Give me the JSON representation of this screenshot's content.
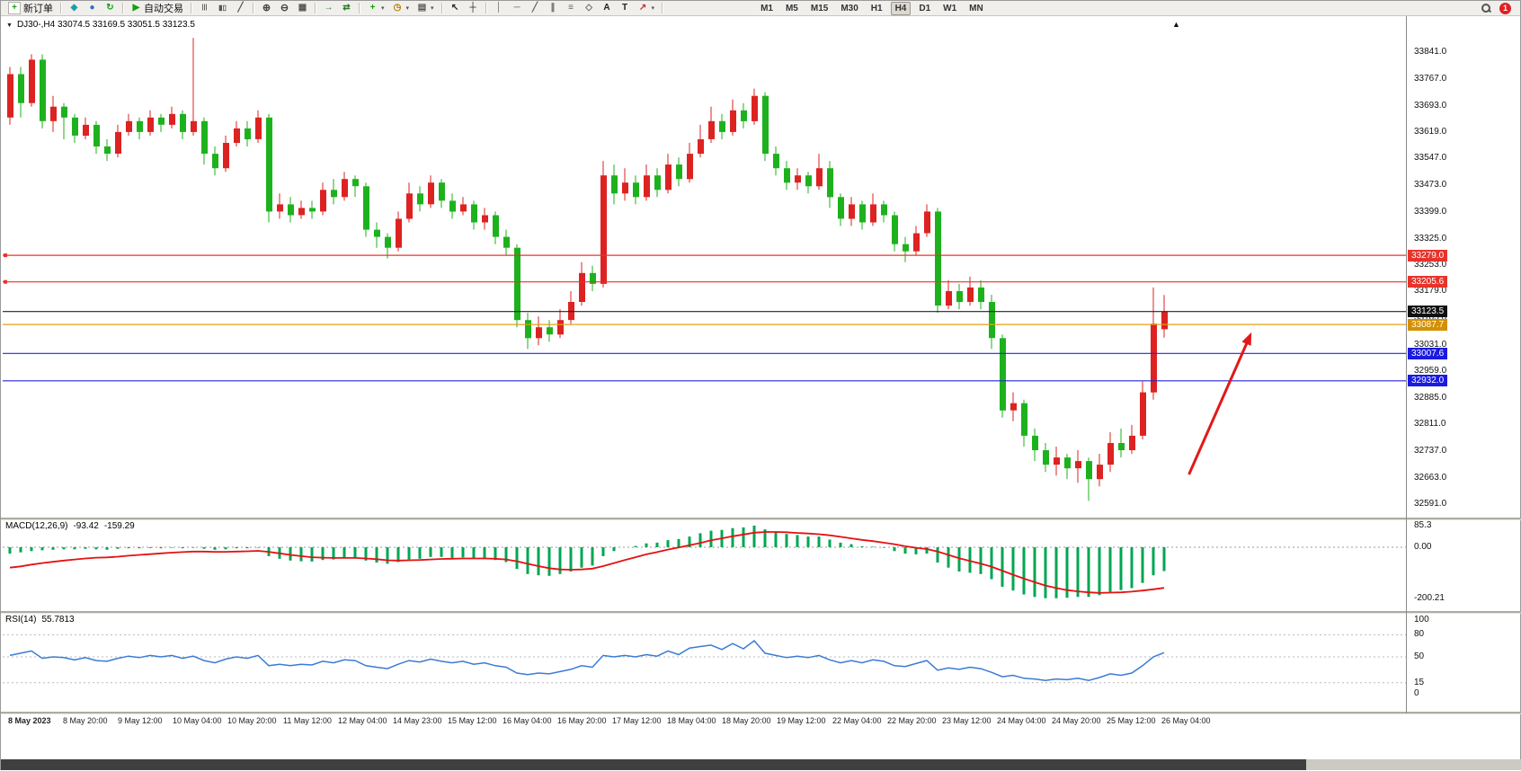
{
  "toolbar": {
    "buttons": [
      {
        "name": "new-order-button",
        "icon": "candle-plus-icon",
        "label": "新订单"
      },
      {
        "sep": true
      },
      {
        "name": "charts-button",
        "icon": "compass-icon"
      },
      {
        "name": "profile-button",
        "icon": "person-icon"
      },
      {
        "name": "refresh-button",
        "icon": "refresh-icon"
      },
      {
        "sep": true
      },
      {
        "name": "autotrading-button",
        "icon": "play-icon",
        "label": "自动交易"
      },
      {
        "sep": true
      },
      {
        "name": "bar-chart-button",
        "icon": "bars-icon"
      },
      {
        "name": "candlestick-chart-button",
        "icon": "candles-icon"
      },
      {
        "name": "line-chart-button",
        "icon": "linechart-icon"
      },
      {
        "sep": true
      },
      {
        "name": "zoom-in-button",
        "icon": "zoom-in-icon"
      },
      {
        "name": "zoom-out-button",
        "icon": "zoom-out-icon"
      },
      {
        "name": "tile-windows-button",
        "icon": "tile-icon"
      },
      {
        "sep": true
      },
      {
        "name": "auto-scroll-button",
        "icon": "auto-scroll-icon"
      },
      {
        "name": "chart-shift-button",
        "icon": "chart-shift-icon"
      },
      {
        "sep": true
      },
      {
        "name": "indicators-button",
        "icon": "indicator-plus-icon",
        "dropdown": true
      },
      {
        "name": "periods-button",
        "icon": "clock-icon",
        "dropdown": true
      },
      {
        "name": "templates-button",
        "icon": "template-icon",
        "dropdown": true
      },
      {
        "sep": true
      },
      {
        "name": "cursor-button",
        "icon": "cursor-icon"
      },
      {
        "name": "crosshair-button",
        "icon": "crosshair-icon"
      },
      {
        "sep": true
      },
      {
        "name": "vertical-line-button",
        "icon": "vline-icon"
      },
      {
        "name": "horizontal-line-button",
        "icon": "hline-icon"
      },
      {
        "name": "trendline-button",
        "icon": "trendline-icon"
      },
      {
        "name": "channel-button",
        "icon": "channel-icon"
      },
      {
        "name": "fibonacci-button",
        "icon": "fibo-icon"
      },
      {
        "name": "shapes-button",
        "icon": "shapes-icon"
      },
      {
        "name": "text-button",
        "icon": "text-a-icon"
      },
      {
        "name": "text-label-button",
        "icon": "text-t-icon"
      },
      {
        "name": "arrows-button",
        "icon": "arrow-icon",
        "dropdown": true
      },
      {
        "sep": true
      }
    ],
    "timeframes": [
      "M1",
      "M5",
      "M15",
      "M30",
      "H1",
      "H4",
      "D1",
      "W1",
      "MN"
    ],
    "active_timeframe": "H4",
    "notification_count": "1"
  },
  "title": {
    "symbol_ohlc": "DJ30-,H4  33074.5 33169.5 33051.5 33123.5"
  },
  "price_axis": [
    33841.0,
    33767.0,
    33693.0,
    33619.0,
    33547.0,
    33473.0,
    33399.0,
    33325.0,
    33253.0,
    33179.0,
    33105.0,
    33031.0,
    32959.0,
    32885.0,
    32811.0,
    32737.0,
    32663.0,
    32591.0
  ],
  "time_axis": [
    "8 May 2023",
    "8 May 20:00",
    "9 May 12:00",
    "10 May 04:00",
    "10 May 20:00",
    "11 May 12:00",
    "12 May 04:00",
    "14 May 23:00",
    "15 May 12:00",
    "16 May 04:00",
    "16 May 20:00",
    "17 May 12:00",
    "18 May 04:00",
    "18 May 20:00",
    "19 May 12:00",
    "22 May 04:00",
    "22 May 20:00",
    "23 May 12:00",
    "24 May 04:00",
    "24 May 20:00",
    "25 May 12:00",
    "26 May 04:00"
  ],
  "chart_data": {
    "type": "candlestick",
    "symbol": "DJ30-",
    "timeframe": "H4",
    "last_bar": {
      "open": 33074.5,
      "high": 33169.5,
      "low": 33051.5,
      "close": 33123.5
    },
    "ylim": [
      32554,
      33900
    ],
    "colors": {
      "bull": "#dd2222",
      "bear": "#1db21d",
      "macd_hist": "#00a651",
      "macd_signal": "#e31212",
      "rsi_line": "#3b7bd4",
      "arrow": "#e31818"
    },
    "candles": [
      [
        33660,
        33800,
        33640,
        33780
      ],
      [
        33780,
        33800,
        33660,
        33700
      ],
      [
        33700,
        33835,
        33690,
        33820
      ],
      [
        33820,
        33835,
        33630,
        33650
      ],
      [
        33650,
        33720,
        33620,
        33690
      ],
      [
        33690,
        33700,
        33600,
        33660
      ],
      [
        33660,
        33670,
        33590,
        33610
      ],
      [
        33610,
        33660,
        33600,
        33640
      ],
      [
        33640,
        33650,
        33560,
        33580
      ],
      [
        33580,
        33600,
        33540,
        33560
      ],
      [
        33560,
        33640,
        33550,
        33620
      ],
      [
        33620,
        33670,
        33610,
        33650
      ],
      [
        33650,
        33660,
        33600,
        33620
      ],
      [
        33620,
        33680,
        33610,
        33660
      ],
      [
        33660,
        33670,
        33620,
        33640
      ],
      [
        33640,
        33690,
        33630,
        33670
      ],
      [
        33670,
        33680,
        33600,
        33620
      ],
      [
        33620,
        33880,
        33610,
        33650
      ],
      [
        33650,
        33660,
        33530,
        33560
      ],
      [
        33560,
        33580,
        33500,
        33520
      ],
      [
        33520,
        33610,
        33510,
        33590
      ],
      [
        33590,
        33650,
        33580,
        33630
      ],
      [
        33630,
        33650,
        33580,
        33600
      ],
      [
        33600,
        33680,
        33590,
        33660
      ],
      [
        33660,
        33670,
        33370,
        33400
      ],
      [
        33400,
        33450,
        33380,
        33420
      ],
      [
        33420,
        33440,
        33370,
        33390
      ],
      [
        33390,
        33430,
        33380,
        33410
      ],
      [
        33410,
        33430,
        33380,
        33400
      ],
      [
        33400,
        33480,
        33390,
        33460
      ],
      [
        33460,
        33490,
        33420,
        33440
      ],
      [
        33440,
        33510,
        33430,
        33490
      ],
      [
        33490,
        33500,
        33440,
        33470
      ],
      [
        33470,
        33480,
        33330,
        33350
      ],
      [
        33350,
        33370,
        33300,
        33330
      ],
      [
        33330,
        33340,
        33270,
        33300
      ],
      [
        33300,
        33400,
        33290,
        33380
      ],
      [
        33380,
        33480,
        33370,
        33450
      ],
      [
        33450,
        33470,
        33400,
        33420
      ],
      [
        33420,
        33500,
        33410,
        33480
      ],
      [
        33480,
        33490,
        33410,
        33430
      ],
      [
        33430,
        33450,
        33380,
        33400
      ],
      [
        33400,
        33440,
        33390,
        33420
      ],
      [
        33420,
        33430,
        33350,
        33370
      ],
      [
        33370,
        33410,
        33350,
        33390
      ],
      [
        33390,
        33400,
        33310,
        33330
      ],
      [
        33330,
        33350,
        33280,
        33300
      ],
      [
        33300,
        33310,
        33080,
        33100
      ],
      [
        33100,
        33120,
        33020,
        33050
      ],
      [
        33050,
        33110,
        33030,
        33080
      ],
      [
        33080,
        33100,
        33040,
        33060
      ],
      [
        33060,
        33130,
        33050,
        33100
      ],
      [
        33100,
        33180,
        33090,
        33150
      ],
      [
        33150,
        33260,
        33140,
        33230
      ],
      [
        33230,
        33250,
        33180,
        33200
      ],
      [
        33200,
        33540,
        33190,
        33500
      ],
      [
        33500,
        33530,
        33420,
        33450
      ],
      [
        33450,
        33520,
        33430,
        33480
      ],
      [
        33480,
        33500,
        33420,
        33440
      ],
      [
        33440,
        33530,
        33430,
        33500
      ],
      [
        33500,
        33520,
        33440,
        33460
      ],
      [
        33460,
        33560,
        33450,
        33530
      ],
      [
        33530,
        33550,
        33470,
        33490
      ],
      [
        33490,
        33590,
        33480,
        33560
      ],
      [
        33560,
        33640,
        33550,
        33600
      ],
      [
        33600,
        33690,
        33590,
        33650
      ],
      [
        33650,
        33670,
        33600,
        33620
      ],
      [
        33620,
        33710,
        33610,
        33680
      ],
      [
        33680,
        33700,
        33630,
        33650
      ],
      [
        33650,
        33740,
        33640,
        33720
      ],
      [
        33720,
        33730,
        33540,
        33560
      ],
      [
        33560,
        33580,
        33500,
        33520
      ],
      [
        33520,
        33540,
        33460,
        33480
      ],
      [
        33480,
        33520,
        33460,
        33500
      ],
      [
        33500,
        33510,
        33450,
        33470
      ],
      [
        33470,
        33560,
        33460,
        33520
      ],
      [
        33520,
        33540,
        33410,
        33440
      ],
      [
        33440,
        33450,
        33360,
        33380
      ],
      [
        33380,
        33440,
        33360,
        33420
      ],
      [
        33420,
        33430,
        33350,
        33370
      ],
      [
        33370,
        33450,
        33360,
        33420
      ],
      [
        33420,
        33430,
        33370,
        33390
      ],
      [
        33390,
        33400,
        33290,
        33310
      ],
      [
        33310,
        33330,
        33260,
        33290
      ],
      [
        33290,
        33360,
        33280,
        33340
      ],
      [
        33340,
        33420,
        33330,
        33400
      ],
      [
        33400,
        33410,
        33120,
        33140
      ],
      [
        33140,
        33210,
        33130,
        33180
      ],
      [
        33180,
        33200,
        33130,
        33150
      ],
      [
        33150,
        33220,
        33140,
        33190
      ],
      [
        33190,
        33210,
        33130,
        33150
      ],
      [
        33150,
        33170,
        33020,
        33050
      ],
      [
        33050,
        33060,
        32830,
        32850
      ],
      [
        32850,
        32900,
        32820,
        32870
      ],
      [
        32870,
        32880,
        32750,
        32780
      ],
      [
        32780,
        32800,
        32710,
        32740
      ],
      [
        32740,
        32760,
        32680,
        32700
      ],
      [
        32700,
        32750,
        32670,
        32720
      ],
      [
        32720,
        32730,
        32660,
        32690
      ],
      [
        32690,
        32740,
        32650,
        32710
      ],
      [
        32710,
        32720,
        32600,
        32660
      ],
      [
        32660,
        32730,
        32640,
        32700
      ],
      [
        32700,
        32790,
        32680,
        32760
      ],
      [
        32760,
        32800,
        32720,
        32740
      ],
      [
        32740,
        32810,
        32730,
        32780
      ],
      [
        32780,
        32930,
        32770,
        32900
      ],
      [
        32900,
        33190,
        32880,
        33090
      ],
      [
        33074.5,
        33169.5,
        33051.5,
        33123.5
      ]
    ],
    "levels": [
      {
        "price": 33279.0,
        "label": "33279.0",
        "color": "#e8332a",
        "tag_bg": "#e8332a"
      },
      {
        "price": 33205.6,
        "label": "33205.6",
        "color": "#e8332a",
        "tag_bg": "#e8332a"
      },
      {
        "price": 33123.5,
        "label": "33123.5",
        "color": "#222222",
        "tag_bg": "#111111"
      },
      {
        "price": 33087.7,
        "label": "33087.7",
        "color": "#e0a010",
        "tag_bg": "#d49000"
      },
      {
        "price": 33007.6,
        "label": "33007.6",
        "color": "#2426d8",
        "tag_bg": "#1a1ae0"
      },
      {
        "price": 32932.0,
        "label": "32932.0",
        "color": "#2426d8",
        "tag_bg": "#1a1ae0"
      }
    ],
    "annotation_arrow": {
      "from_index": 109.3,
      "from_price": 32673,
      "to_index": 115.1,
      "to_price": 33066
    },
    "macd": {
      "label": "MACD(12,26,9)",
      "main_value": "-93.42",
      "signal_value": "-159.29",
      "axis": [
        {
          "v": 85.3,
          "label": "85.3"
        },
        {
          "v": 0,
          "label": "0.00"
        },
        {
          "v": -200.21,
          "label": "-200.21"
        }
      ],
      "ylim": [
        -230,
        110
      ],
      "histogram": [
        -25,
        -20,
        -15,
        -12,
        -10,
        -8,
        -8,
        -6,
        -8,
        -10,
        -6,
        -4,
        -4,
        -3,
        -4,
        -2,
        -4,
        -2,
        -6,
        -10,
        -8,
        -4,
        -4,
        -2,
        -35,
        -45,
        -52,
        -55,
        -56,
        -50,
        -48,
        -42,
        -40,
        -52,
        -60,
        -65,
        -58,
        -48,
        -45,
        -38,
        -38,
        -42,
        -40,
        -45,
        -43,
        -50,
        -58,
        -85,
        -105,
        -110,
        -112,
        -105,
        -95,
        -80,
        -72,
        -35,
        -15,
        0,
        5,
        15,
        18,
        28,
        32,
        42,
        55,
        65,
        68,
        75,
        78,
        85,
        70,
        62,
        52,
        48,
        42,
        42,
        30,
        18,
        12,
        4,
        2,
        -2,
        -15,
        -25,
        -28,
        -25,
        -60,
        -80,
        -95,
        -100,
        -105,
        -125,
        -155,
        -170,
        -185,
        -195,
        -200,
        -200,
        -198,
        -195,
        -195,
        -188,
        -175,
        -168,
        -160,
        -140,
        -110,
        -93.42
      ],
      "signal": [
        -80,
        -75,
        -68,
        -62,
        -57,
        -52,
        -48,
        -44,
        -41,
        -40,
        -37,
        -33,
        -30,
        -27,
        -24,
        -21,
        -19,
        -17,
        -17,
        -18,
        -18,
        -17,
        -16,
        -14,
        -18,
        -24,
        -30,
        -35,
        -39,
        -41,
        -42,
        -42,
        -42,
        -44,
        -47,
        -51,
        -52,
        -51,
        -50,
        -48,
        -46,
        -45,
        -44,
        -44,
        -44,
        -45,
        -48,
        -55,
        -65,
        -74,
        -82,
        -87,
        -88,
        -87,
        -84,
        -74,
        -62,
        -50,
        -39,
        -28,
        -19,
        -9,
        -1,
        8,
        17,
        27,
        35,
        43,
        50,
        57,
        60,
        60,
        59,
        56,
        54,
        51,
        47,
        41,
        35,
        29,
        24,
        18,
        12,
        4,
        -2,
        -7,
        -17,
        -30,
        -43,
        -54,
        -64,
        -76,
        -92,
        -108,
        -123,
        -137,
        -150,
        -160,
        -168,
        -173,
        -177,
        -179,
        -178,
        -177,
        -174,
        -170,
        -165,
        -159.29
      ]
    },
    "rsi": {
      "label": "RSI(14)",
      "value": "55.7813",
      "axis": [
        {
          "v": 100,
          "label": "100"
        },
        {
          "v": 80,
          "label": "80"
        },
        {
          "v": 50,
          "label": "50"
        },
        {
          "v": 15,
          "label": "15"
        },
        {
          "v": 0,
          "label": "0"
        }
      ],
      "levels": [
        80,
        50,
        15
      ],
      "values": [
        52,
        55,
        58,
        48,
        50,
        49,
        46,
        49,
        45,
        44,
        48,
        51,
        49,
        52,
        50,
        52,
        48,
        51,
        45,
        42,
        47,
        50,
        48,
        52,
        38,
        40,
        38,
        40,
        39,
        44,
        42,
        46,
        45,
        38,
        36,
        34,
        40,
        45,
        43,
        47,
        44,
        42,
        44,
        40,
        42,
        38,
        36,
        28,
        26,
        28,
        27,
        30,
        33,
        38,
        36,
        52,
        50,
        52,
        50,
        53,
        51,
        58,
        53,
        62,
        64,
        66,
        60,
        68,
        61,
        72,
        55,
        52,
        49,
        51,
        49,
        52,
        46,
        42,
        45,
        42,
        46,
        44,
        38,
        37,
        41,
        45,
        32,
        35,
        33,
        36,
        34,
        29,
        23,
        25,
        21,
        20,
        18,
        20,
        19,
        21,
        18,
        22,
        27,
        25,
        28,
        38,
        50,
        55.78
      ]
    }
  }
}
